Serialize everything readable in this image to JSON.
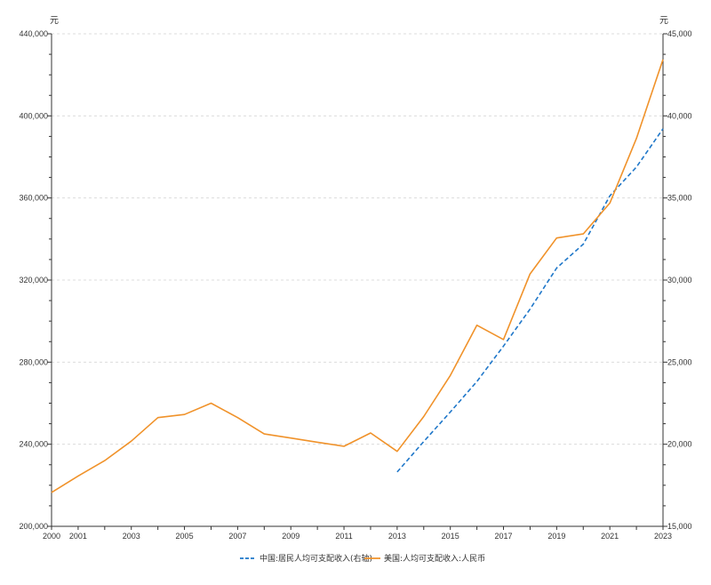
{
  "chart_data": {
    "type": "line",
    "title": "",
    "y_left": {
      "unit": "元",
      "ticks": [
        "200,000",
        "240,000",
        "280,000",
        "320,000",
        "360,000",
        "400,000",
        "440,000"
      ],
      "ylim": [
        200000,
        440000
      ]
    },
    "y_right": {
      "unit": "元",
      "ticks": [
        "15,000",
        "20,000",
        "25,000",
        "30,000",
        "35,000",
        "40,000",
        "45,000"
      ],
      "ylim": [
        15000,
        45000
      ]
    },
    "x_ticks": [
      "2000",
      "2001",
      "2003",
      "2005",
      "2007",
      "2009",
      "2011",
      "2013",
      "2015",
      "2017",
      "2019",
      "2021",
      "2023"
    ],
    "xlim": [
      2000,
      2023
    ],
    "grid": true,
    "legend_position": "bottom",
    "series": [
      {
        "name": "中国:居民人均可支配收入(右轴)",
        "axis": "right",
        "color": "#1f77c9",
        "dash": true,
        "x": [
          2013,
          2014,
          2015,
          2016,
          2017,
          2018,
          2019,
          2020,
          2021,
          2022,
          2023
        ],
        "values": [
          18311,
          20167,
          21966,
          23821,
          25974,
          28228,
          30733,
          32189,
          35128,
          36883,
          39218
        ]
      },
      {
        "name": "美国:人均可支配收入:人民币",
        "axis": "left",
        "color": "#f0922a",
        "dash": false,
        "x": [
          2000,
          2001,
          2002,
          2003,
          2004,
          2005,
          2006,
          2007,
          2008,
          2009,
          2010,
          2011,
          2012,
          2013,
          2014,
          2015,
          2016,
          2017,
          2018,
          2019,
          2020,
          2021,
          2022,
          2023
        ],
        "values": [
          216500,
          224500,
          232000,
          241500,
          253000,
          254500,
          260000,
          253000,
          245000,
          243000,
          241000,
          239000,
          245500,
          236500,
          253500,
          273500,
          298000,
          291000,
          323000,
          340500,
          342500,
          357500,
          389000,
          427500
        ]
      }
    ]
  }
}
